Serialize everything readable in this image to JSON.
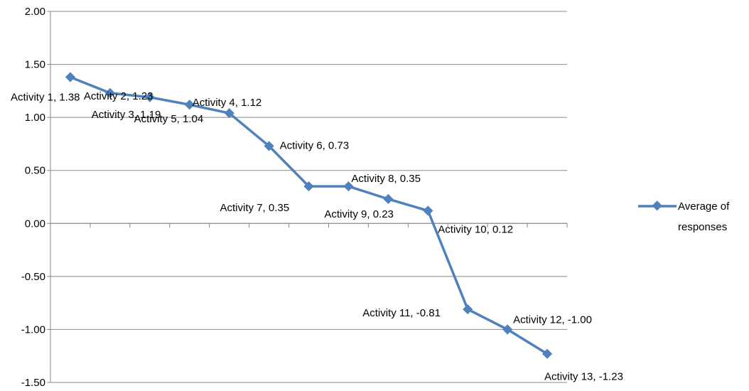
{
  "chart_data": {
    "type": "line",
    "title": "",
    "xlabel": "",
    "ylabel": "",
    "ylim": [
      -1.5,
      2.0
    ],
    "ytick_step": 0.5,
    "yticks": [
      "2.00",
      "1.50",
      "1.00",
      "0.50",
      "0.00",
      "-0.50",
      "-1.00",
      "-1.50"
    ],
    "grid": true,
    "legend_position": "right",
    "color": "#4F81BD",
    "categories": [
      "Activity 1",
      "Activity 2",
      "Activity 3",
      "Activity 4",
      "Activity 5",
      "Activity 6",
      "Activity 7",
      "Activity 8",
      "Activity 9",
      "Activity 10",
      "Activity 11",
      "Activity 12",
      "Activity 13"
    ],
    "series": [
      {
        "name": "Average of responses",
        "values": [
          1.38,
          1.23,
          1.19,
          1.12,
          1.04,
          0.73,
          0.35,
          0.35,
          0.23,
          0.12,
          -0.81,
          -1.0,
          -1.23
        ]
      }
    ],
    "data_labels": [
      "Activity 1, 1.38",
      "Activity 2, 1.23",
      "Activity 3, 1.19",
      "Activity 4, 1.12",
      "Activity 5, 1.04",
      "Activity 6, 0.73",
      "Activity 7, 0.35",
      "Activity 8, 0.35",
      "Activity 9, 0.23",
      "Activity 10, 0.12",
      "Activity 11, -0.81",
      "Activity 12, -1.00",
      "Activity 13, -1.23"
    ],
    "legend": {
      "line1": "Average of",
      "line2": "responses"
    }
  }
}
